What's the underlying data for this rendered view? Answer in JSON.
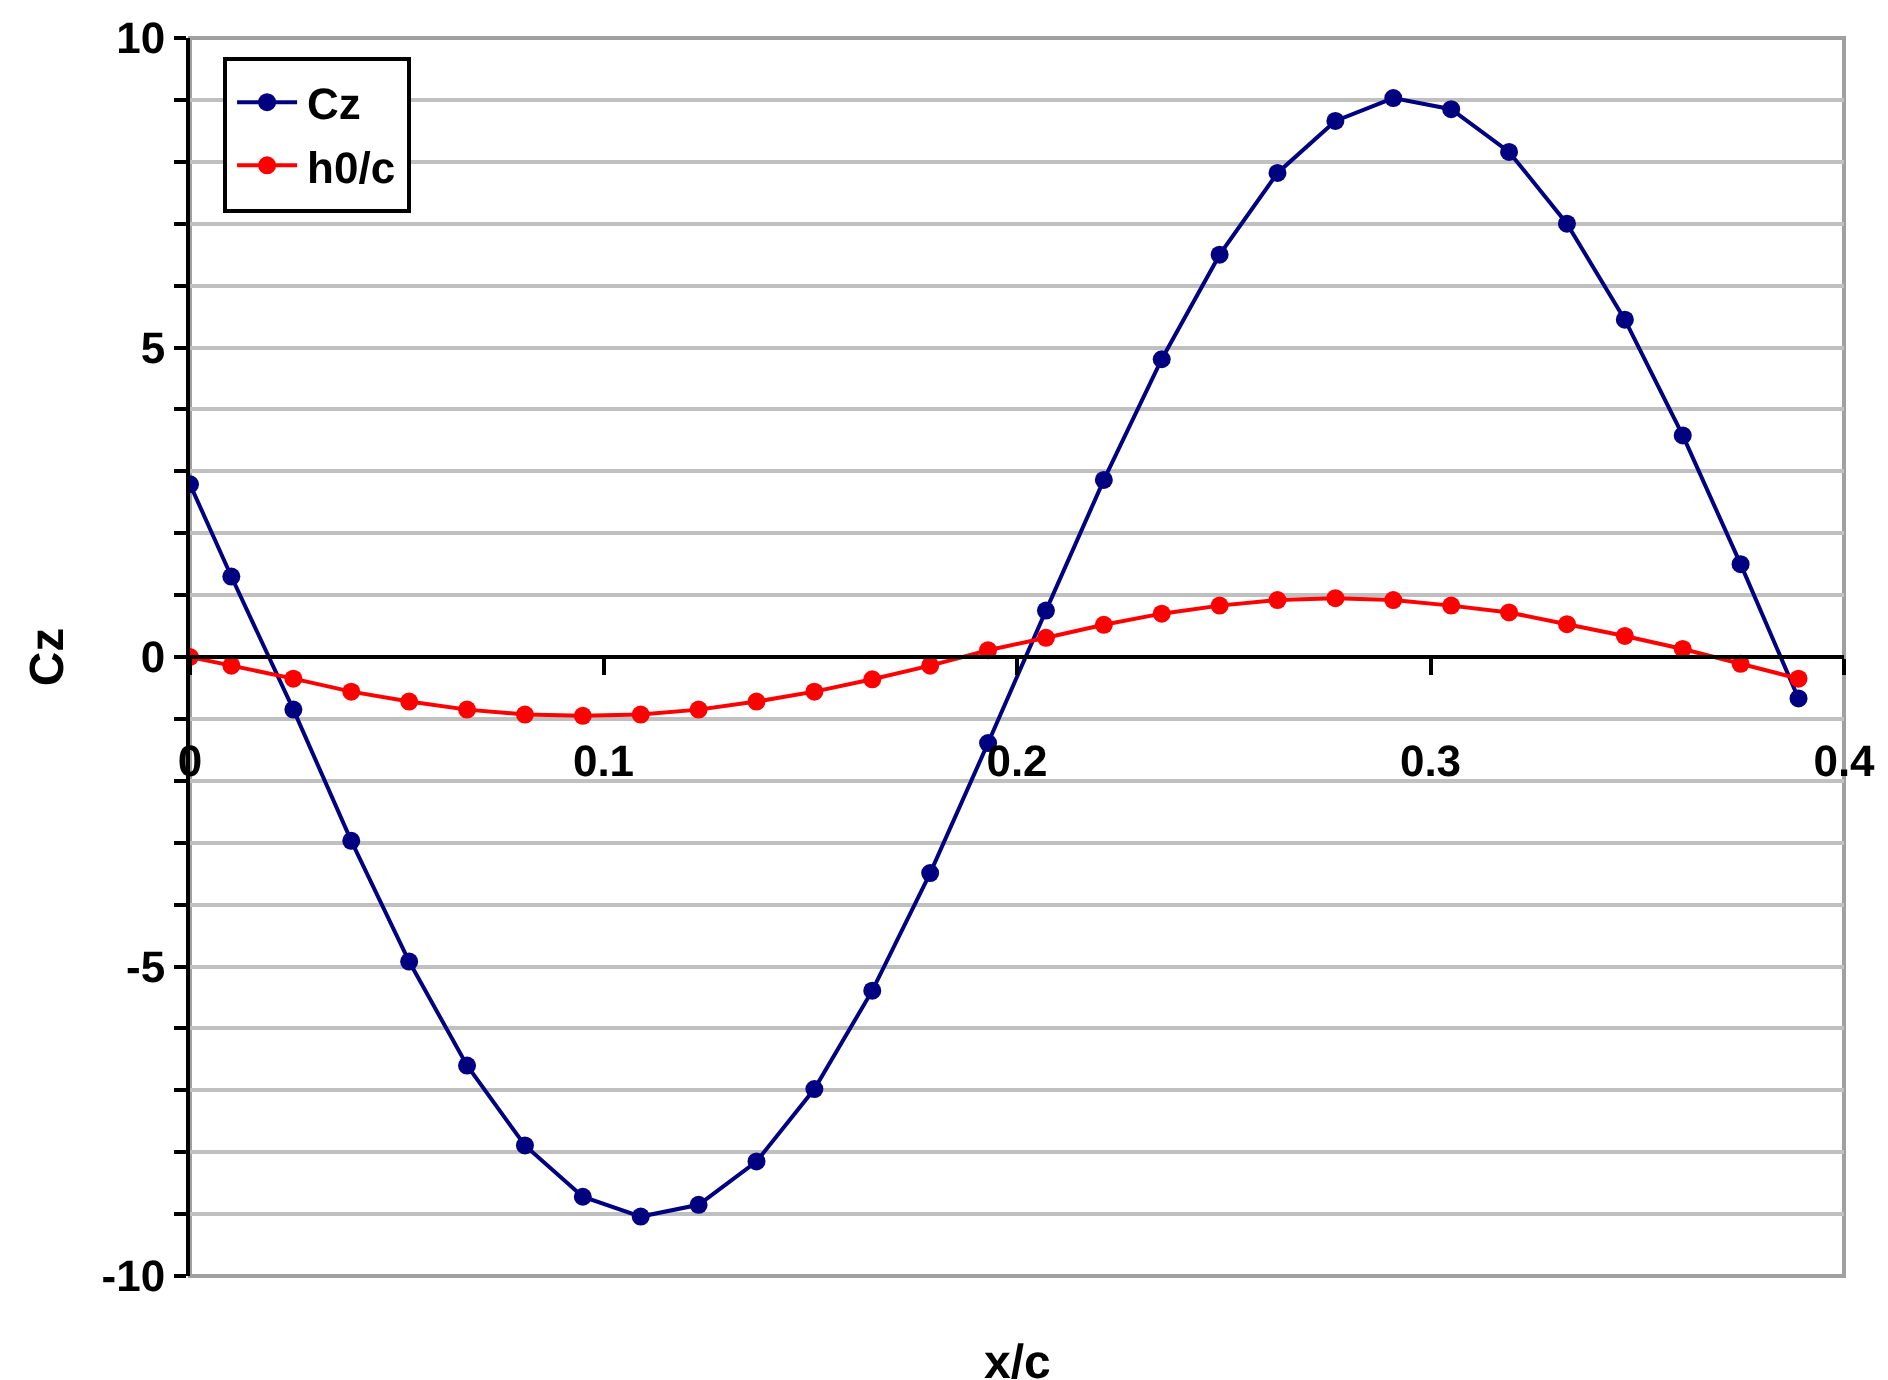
{
  "chart_data": {
    "type": "line",
    "xlabel": "x/c",
    "ylabel": "Cz",
    "x": [
      0,
      0.01,
      0.025,
      0.039,
      0.053,
      0.067,
      0.081,
      0.095,
      0.109,
      0.123,
      0.137,
      0.151,
      0.165,
      0.179,
      0.193,
      0.207,
      0.221,
      0.235,
      0.249,
      0.263,
      0.277,
      0.291,
      0.305,
      0.319,
      0.333,
      0.347,
      0.361,
      0.375,
      0.389
    ],
    "series": [
      {
        "name": "Cz",
        "color": "#000080",
        "values": [
          2.79,
          1.3,
          -0.85,
          -2.97,
          -4.92,
          -6.6,
          -7.89,
          -8.72,
          -9.04,
          -8.85,
          -8.15,
          -6.98,
          -5.39,
          -3.49,
          -1.39,
          0.75,
          2.86,
          4.81,
          6.5,
          7.82,
          8.66,
          9.03,
          8.85,
          8.16,
          7.0,
          5.45,
          3.58,
          1.5,
          -0.67
        ]
      },
      {
        "name": "h0/c",
        "color": "#ff0000",
        "values": [
          0.0,
          -0.14,
          -0.35,
          -0.56,
          -0.72,
          -0.85,
          -0.93,
          -0.95,
          -0.93,
          -0.85,
          -0.72,
          -0.56,
          -0.36,
          -0.14,
          0.11,
          0.31,
          0.52,
          0.7,
          0.83,
          0.92,
          0.95,
          0.92,
          0.83,
          0.72,
          0.53,
          0.34,
          0.13,
          -0.11,
          -0.35
        ]
      }
    ],
    "xlim": [
      0,
      0.4
    ],
    "xticks": [
      0,
      0.1,
      0.2,
      0.3,
      0.4
    ],
    "ylim": [
      -10,
      10
    ],
    "yticks": [
      -10,
      {
        "value": -9,
        "label": null
      },
      {
        "value": -8,
        "label": null
      },
      {
        "value": -7,
        "label": null
      },
      {
        "value": -6,
        "label": null
      },
      -5,
      {
        "value": -4,
        "label": null
      },
      {
        "value": -3,
        "label": null
      },
      {
        "value": -2,
        "label": null
      },
      {
        "value": -1,
        "label": null
      },
      0,
      {
        "value": 1,
        "label": null
      },
      {
        "value": 2,
        "label": null
      },
      {
        "value": 3,
        "label": null
      },
      {
        "value": 4,
        "label": null
      },
      5,
      {
        "value": 6,
        "label": null
      },
      {
        "value": 7,
        "label": null
      },
      {
        "value": 8,
        "label": null
      },
      {
        "value": 9,
        "label": null
      },
      10
    ],
    "grid": "y",
    "legend": "top left",
    "marker": "circle",
    "line_style": "solid"
  }
}
